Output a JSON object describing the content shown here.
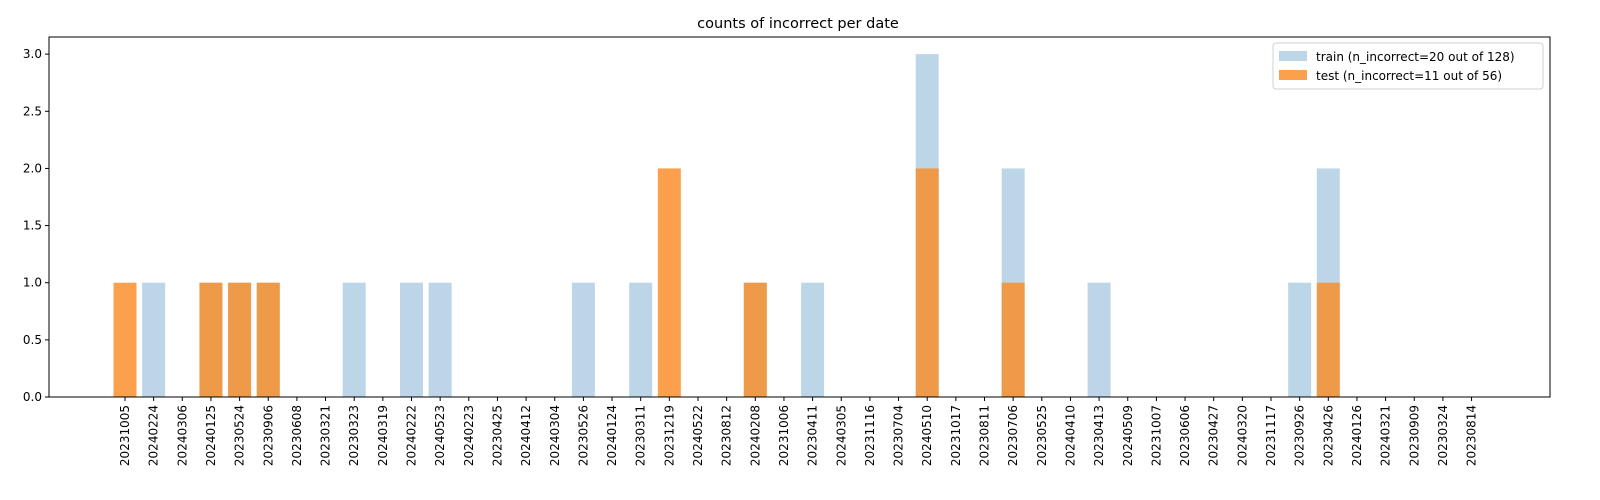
{
  "chart_data": {
    "type": "bar",
    "title": "counts of incorrect per date",
    "xlabel": "",
    "ylabel": "",
    "ylim": [
      0,
      3.15
    ],
    "yticks": [
      "0.0",
      "0.5",
      "1.0",
      "1.5",
      "2.0",
      "2.5",
      "3.0"
    ],
    "ytick_values": [
      0,
      0.5,
      1.0,
      1.5,
      2.0,
      2.5,
      3.0
    ],
    "grid": false,
    "legend_position": "top-right",
    "categories": [
      "20231005",
      "20240224",
      "20240306",
      "20240125",
      "20230524",
      "20230906",
      "20230608",
      "20230321",
      "20230323",
      "20240319",
      "20240222",
      "20240523",
      "20240223",
      "20230425",
      "20240412",
      "20240304",
      "20230526",
      "20240124",
      "20230311",
      "20231219",
      "20240522",
      "20230812",
      "20240208",
      "20231006",
      "20230411",
      "20240305",
      "20231116",
      "20230704",
      "20240510",
      "20231017",
      "20230811",
      "20230706",
      "20230525",
      "20240410",
      "20230413",
      "20240509",
      "20231007",
      "20230606",
      "20230427",
      "20240320",
      "20231117",
      "20230926",
      "20230426",
      "20240126",
      "20240321",
      "20230909",
      "20230324",
      "20230814"
    ],
    "series": [
      {
        "name": "train (n_incorrect=20 out of 128)",
        "color": "#bcd6e8",
        "values": [
          0,
          1,
          0,
          1,
          1,
          1,
          0,
          0,
          1,
          0,
          1,
          1,
          0,
          0,
          0,
          0,
          1,
          0,
          1,
          0,
          0,
          0,
          1,
          0,
          1,
          0,
          0,
          0,
          3,
          0,
          0,
          2,
          0,
          0,
          1,
          0,
          0,
          0,
          0,
          0,
          0,
          1,
          2,
          0,
          0,
          0,
          0,
          0
        ]
      },
      {
        "name": "test (n_incorrect=11 out of 56)",
        "color": "#fda04d",
        "values": [
          1,
          0,
          0,
          1,
          1,
          1,
          0,
          0,
          0,
          0,
          0,
          0,
          0,
          0,
          0,
          0,
          0,
          0,
          0,
          2,
          0,
          0,
          1,
          0,
          0,
          0,
          0,
          0,
          2,
          0,
          0,
          1,
          0,
          0,
          0,
          0,
          0,
          0,
          0,
          0,
          0,
          0,
          1,
          0,
          0,
          0,
          0,
          0
        ]
      }
    ],
    "overlap_color": "#ef9a48"
  }
}
